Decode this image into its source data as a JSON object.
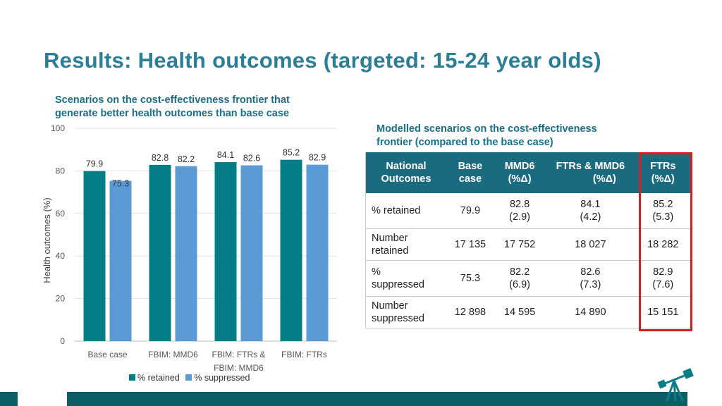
{
  "title": "Results: Health outcomes (targeted: 15-24 year olds)",
  "chart_heading": [
    "Scenarios on the cost-effectiveness frontier that",
    "generate better health outcomes than base case"
  ],
  "table_heading": [
    "Modelled scenarios on the cost-effectiveness",
    "frontier (compared to the base case)"
  ],
  "colors": {
    "retained": "#047d86",
    "suppressed": "#5b9bd5",
    "header_bg": "#1b6b80",
    "highlight": "#e01b1b",
    "title": "#2a7f96"
  },
  "chart_data": {
    "type": "bar",
    "categories": [
      [
        "Base case"
      ],
      [
        "FBIM: MMD6"
      ],
      [
        "FBIM: FTRs &",
        "FBIM: MMD6"
      ],
      [
        "FBIM: FTRs"
      ]
    ],
    "series": [
      {
        "name": "% retained",
        "values": [
          79.9,
          82.8,
          84.1,
          85.2
        ]
      },
      {
        "name": "% suppressed",
        "values": [
          75.3,
          82.2,
          82.6,
          82.9
        ]
      }
    ],
    "ylabel": "Health outcomes (%)",
    "xlabel": "",
    "ylim": [
      0,
      100
    ],
    "yticks": [
      0,
      20,
      40,
      60,
      80,
      100
    ],
    "grid": true,
    "legend": "bottom"
  },
  "table": {
    "headers": [
      [
        "National",
        "Outcomes"
      ],
      [
        "Base",
        "case"
      ],
      [
        "MMD6",
        "(%Δ)"
      ],
      [
        "FTRs & MMD6",
        "(%Δ)"
      ],
      [
        "FTRs",
        "(%Δ)"
      ]
    ],
    "rows": [
      {
        "label": [
          "% retained"
        ],
        "base": "79.9",
        "mmd6": [
          "82.8",
          "(2.9)"
        ],
        "ftrs_mmd6": [
          "84.1",
          "(4.2)"
        ],
        "ftrs": [
          "85.2",
          "(5.3)"
        ]
      },
      {
        "label": [
          "Number",
          "retained"
        ],
        "base": "17 135",
        "mmd6": [
          "17 752"
        ],
        "ftrs_mmd6": [
          "18 027"
        ],
        "ftrs": [
          "18 282"
        ]
      },
      {
        "label": [
          "%",
          "suppressed"
        ],
        "base": "75.3",
        "mmd6": [
          "82.2",
          "(6.9)"
        ],
        "ftrs_mmd6": [
          "82.6",
          "(7.3)"
        ],
        "ftrs": [
          "82.9",
          "(7.6)"
        ]
      },
      {
        "label": [
          "Number",
          "suppressed"
        ],
        "base": "12 898",
        "mmd6": [
          "14 595"
        ],
        "ftrs_mmd6": [
          "14 890"
        ],
        "ftrs": [
          "15 151"
        ]
      }
    ]
  },
  "icons": {
    "logo": "telescope-icon"
  }
}
